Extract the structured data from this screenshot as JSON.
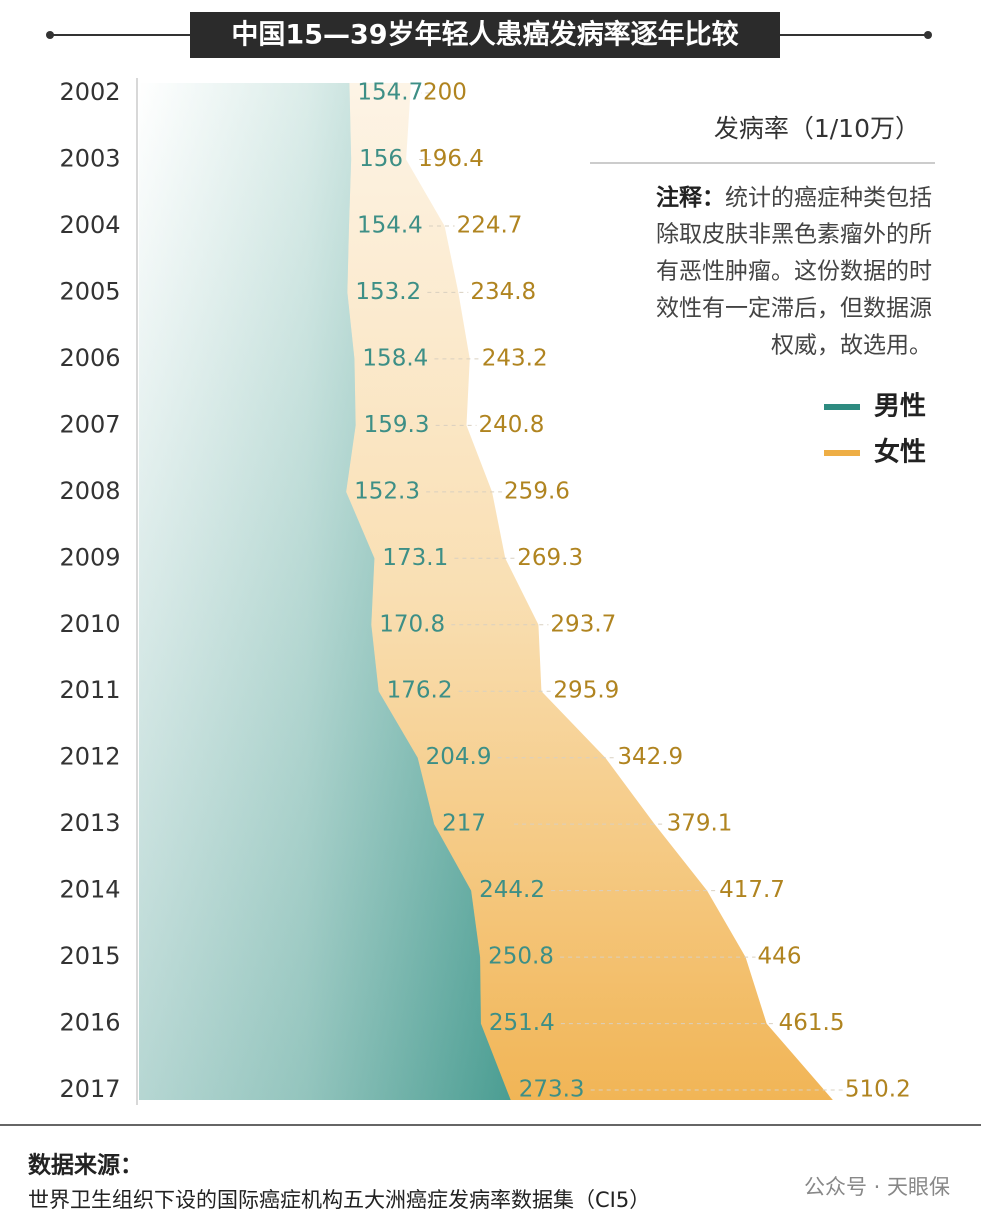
{
  "chart_data": {
    "type": "area",
    "title": "中国15—39岁年轻人患癌发病率逐年比较",
    "unit_label": "发病率（1/10万）",
    "note": {
      "label": "注释：",
      "lines": [
        "统计的癌症种类包括",
        "除取皮肤非黑色素瘤外的所",
        "有恶性肿瘤。这份数据的时",
        "效性有一定滞后，但数据源",
        "权威，故选用。"
      ]
    },
    "categories": [
      "2002",
      "2003",
      "2004",
      "2005",
      "2006",
      "2007",
      "2008",
      "2009",
      "2010",
      "2011",
      "2012",
      "2013",
      "2014",
      "2015",
      "2016",
      "2017"
    ],
    "series": [
      {
        "name": "男性",
        "color": "#2e8b80",
        "label_color": "#3d8f86",
        "values": [
          154.7,
          156,
          154.4,
          153.2,
          158.4,
          159.3,
          152.3,
          173.1,
          170.8,
          176.2,
          204.9,
          217,
          244.2,
          250.8,
          251.4,
          273.3
        ]
      },
      {
        "name": "女性",
        "color": "#eeae45",
        "label_color": "#b08420",
        "values": [
          200,
          196.4,
          224.7,
          234.8,
          243.2,
          240.8,
          259.6,
          269.3,
          293.7,
          295.9,
          342.9,
          379.1,
          417.7,
          446,
          461.5,
          510.2
        ]
      }
    ],
    "source_label": "数据来源：",
    "source": "世界卫生组织下设的国际癌症机构五大洲癌症发病率数据集（CI5）",
    "watermark": "公众号 · 天眼保"
  }
}
